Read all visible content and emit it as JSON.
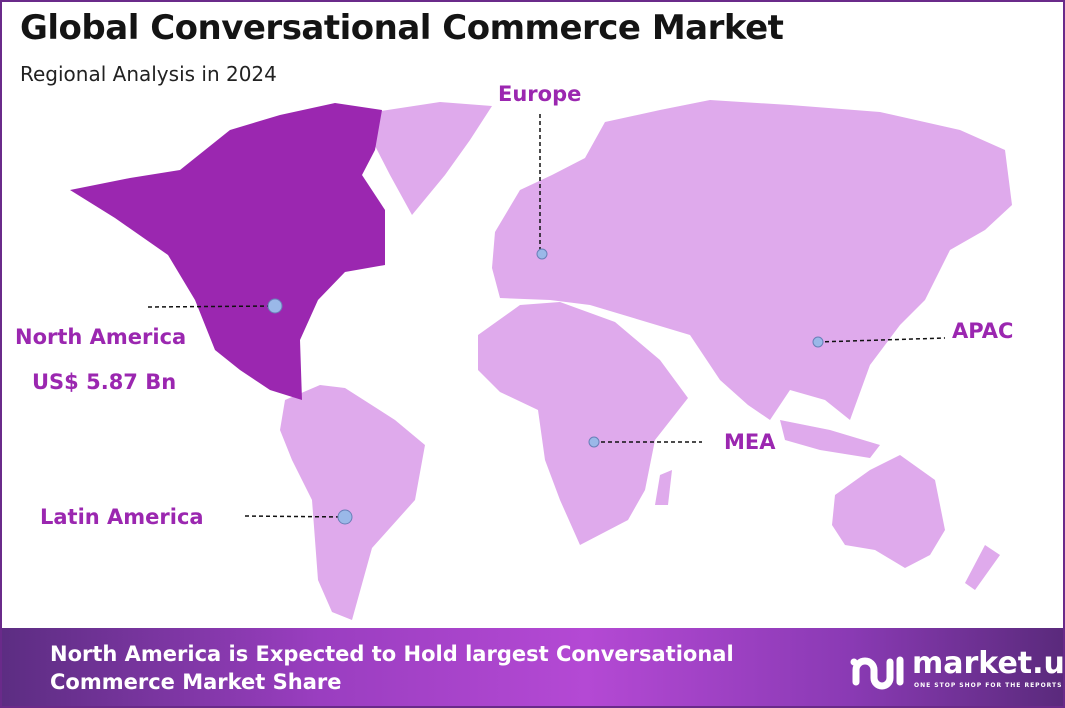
{
  "header": {
    "title": "Global Conversational Commerce Market",
    "subtitle": "Regional Analysis in 2024"
  },
  "colors": {
    "highlight_region": "#9b27b0",
    "other_regions": "#dfaaec",
    "label": "#9b27b0",
    "marker": "#9ab8e8"
  },
  "regions": [
    {
      "name": "North America",
      "value": "US$ 5.87 Bn",
      "highlighted": true
    },
    {
      "name": "Europe",
      "highlighted": false
    },
    {
      "name": "APAC",
      "highlighted": false
    },
    {
      "name": "MEA",
      "highlighted": false
    },
    {
      "name": "Latin America",
      "highlighted": false
    }
  ],
  "footer": {
    "text": "North America is Expected to Hold largest Conversational Commerce Market Share"
  },
  "logo": {
    "name": "market.us",
    "tagline": "ONE STOP SHOP FOR THE REPORTS"
  }
}
